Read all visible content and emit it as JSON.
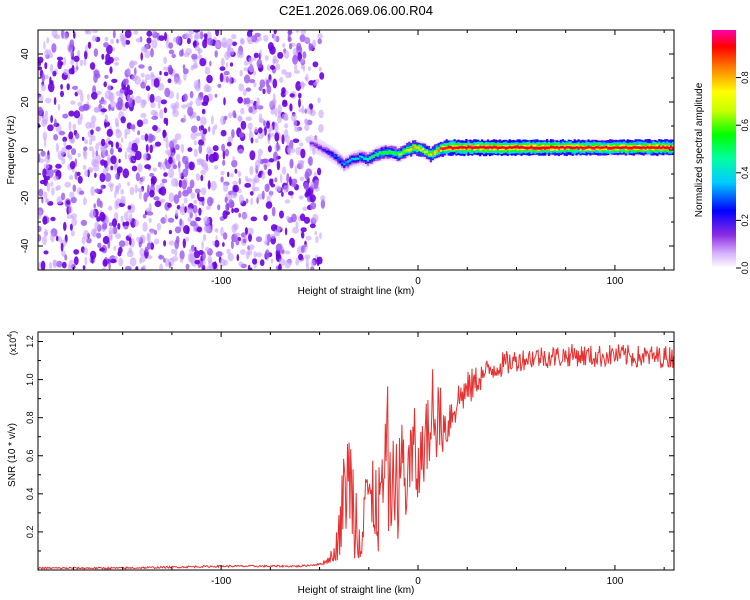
{
  "title": "C2E1.2026.069.06.00.R04",
  "chart_data": [
    {
      "type": "heatmap",
      "name": "spectrogram",
      "xlabel": "Height of straight line (km)",
      "ylabel": "Frequency (Hz)",
      "xlim": [
        -193,
        130
      ],
      "ylim": [
        -50,
        50
      ],
      "xticks": [
        -100,
        0,
        100
      ],
      "xtick_labels": [
        "-100",
        "0",
        "100"
      ],
      "yticks": [
        -40,
        -20,
        0,
        20,
        40
      ],
      "ytick_labels": [
        "-40",
        "-20",
        "0",
        "20",
        "40"
      ],
      "noise_region_x": [
        -193,
        -55
      ],
      "noise_fade_x": [
        -55,
        -45
      ],
      "ridge": {
        "description": "dominant frequency trace",
        "x": [
          -55,
          -48,
          -42,
          -38,
          -34,
          -30,
          -26,
          -22,
          -18,
          -14,
          -10,
          -6,
          -2,
          2,
          6,
          10,
          14,
          20,
          40,
          60,
          80,
          100,
          130
        ],
        "y": [
          3,
          0,
          -3,
          -6,
          -4,
          -3,
          -4,
          -2,
          -1,
          -1,
          -2,
          0,
          1,
          0,
          -2,
          0,
          1,
          1,
          1,
          1,
          1,
          1,
          1
        ],
        "amplitude": [
          0.15,
          0.2,
          0.3,
          0.35,
          0.4,
          0.4,
          0.45,
          0.5,
          0.55,
          0.55,
          0.6,
          0.7,
          0.8,
          0.7,
          0.75,
          0.85,
          0.95,
          1.0,
          1.0,
          1.0,
          0.95,
          0.95,
          1.0
        ]
      },
      "colorbar": {
        "label": "Normalized spectral amplitude",
        "range": [
          0,
          1
        ],
        "ticks": [
          0.0,
          0.2,
          0.4,
          0.6,
          0.8
        ],
        "tick_labels": [
          "0.0",
          "0.2",
          "0.4",
          "0.6",
          "0.8"
        ],
        "colors": [
          "#ffffff",
          "#d9b3ff",
          "#7b00ff",
          "#0000ff",
          "#00ffff",
          "#00ff00",
          "#ffff00",
          "#ff8000",
          "#ff0000",
          "#ff00ff"
        ]
      }
    },
    {
      "type": "line",
      "name": "snr",
      "xlabel": "Height of straight line (km)",
      "ylabel": "SNR (10 * v/v)",
      "scale_label": "(x10",
      "scale_exponent": "4",
      "scale_close": ")",
      "xlim": [
        -193,
        130
      ],
      "ylim": [
        0,
        1.25
      ],
      "xticks": [
        -100,
        0,
        100
      ],
      "xtick_labels": [
        "-100",
        "0",
        "100"
      ],
      "yticks": [
        0.2,
        0.4,
        0.6,
        0.8,
        1.0,
        1.2
      ],
      "ytick_labels": [
        "0.2",
        "0.4",
        "0.6",
        "0.8",
        "1.0",
        "1.2"
      ],
      "series": [
        {
          "name": "SNR",
          "color": "#e83030",
          "x": [
            -193,
            -150,
            -100,
            -60,
            -50,
            -46,
            -42,
            -40,
            -38,
            -36,
            -34,
            -32,
            -30,
            -28,
            -26,
            -24,
            -22,
            -20,
            -18,
            -16,
            -14,
            -12,
            -10,
            -8,
            -6,
            -4,
            -2,
            0,
            2,
            4,
            6,
            8,
            10,
            14,
            18,
            22,
            26,
            30,
            35,
            40,
            50,
            60,
            70,
            80,
            90,
            100,
            110,
            120,
            130
          ],
          "y": [
            0.01,
            0.01,
            0.02,
            0.02,
            0.03,
            0.05,
            0.1,
            0.2,
            0.35,
            0.5,
            0.45,
            0.3,
            0.2,
            0.35,
            0.5,
            0.25,
            0.4,
            0.3,
            0.45,
            0.55,
            0.35,
            0.5,
            0.4,
            0.6,
            0.45,
            0.55,
            0.62,
            0.5,
            0.6,
            0.72,
            0.7,
            0.75,
            0.8,
            0.75,
            0.85,
            0.92,
            0.95,
            1.0,
            1.04,
            1.07,
            1.1,
            1.12,
            1.12,
            1.13,
            1.12,
            1.13,
            1.12,
            1.12,
            1.12
          ],
          "noise": [
            0.005,
            0.005,
            0.005,
            0.005,
            0.005,
            0.02,
            0.05,
            0.15,
            0.25,
            0.3,
            0.3,
            0.25,
            0.25,
            0.25,
            0.3,
            0.25,
            0.25,
            0.25,
            0.25,
            0.3,
            0.25,
            0.25,
            0.25,
            0.25,
            0.25,
            0.25,
            0.25,
            0.2,
            0.2,
            0.2,
            0.2,
            0.2,
            0.2,
            0.15,
            0.12,
            0.1,
            0.1,
            0.08,
            0.07,
            0.07,
            0.06,
            0.06,
            0.06,
            0.06,
            0.06,
            0.06,
            0.06,
            0.06,
            0.06
          ]
        }
      ]
    }
  ]
}
